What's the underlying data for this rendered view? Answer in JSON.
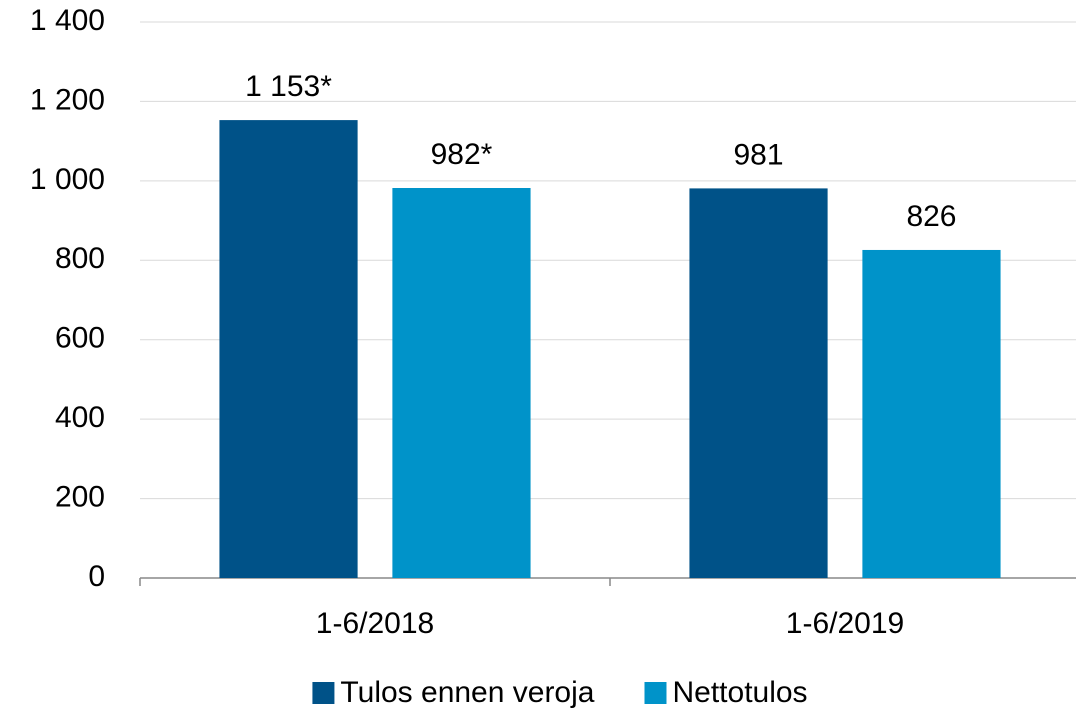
{
  "chart_data": {
    "type": "bar",
    "categories": [
      "1-6/2018",
      "1-6/2019"
    ],
    "series": [
      {
        "name": "Tulos ennen veroja",
        "color": "#005288",
        "values": [
          1153,
          981
        ],
        "value_labels": [
          "1 153*",
          "981"
        ]
      },
      {
        "name": "Nettotulos",
        "color": "#0093c9",
        "values": [
          982,
          826
        ],
        "value_labels": [
          "982*",
          "826"
        ]
      }
    ],
    "ylim": [
      0,
      1400
    ],
    "yticks": [
      0,
      200,
      400,
      600,
      800,
      {
        "value": 1000,
        "label": "1 000"
      },
      {
        "value": 1200,
        "label": "1 200"
      },
      {
        "value": 1400,
        "label": "1 400"
      }
    ],
    "grid": true,
    "legend": "bottom"
  }
}
